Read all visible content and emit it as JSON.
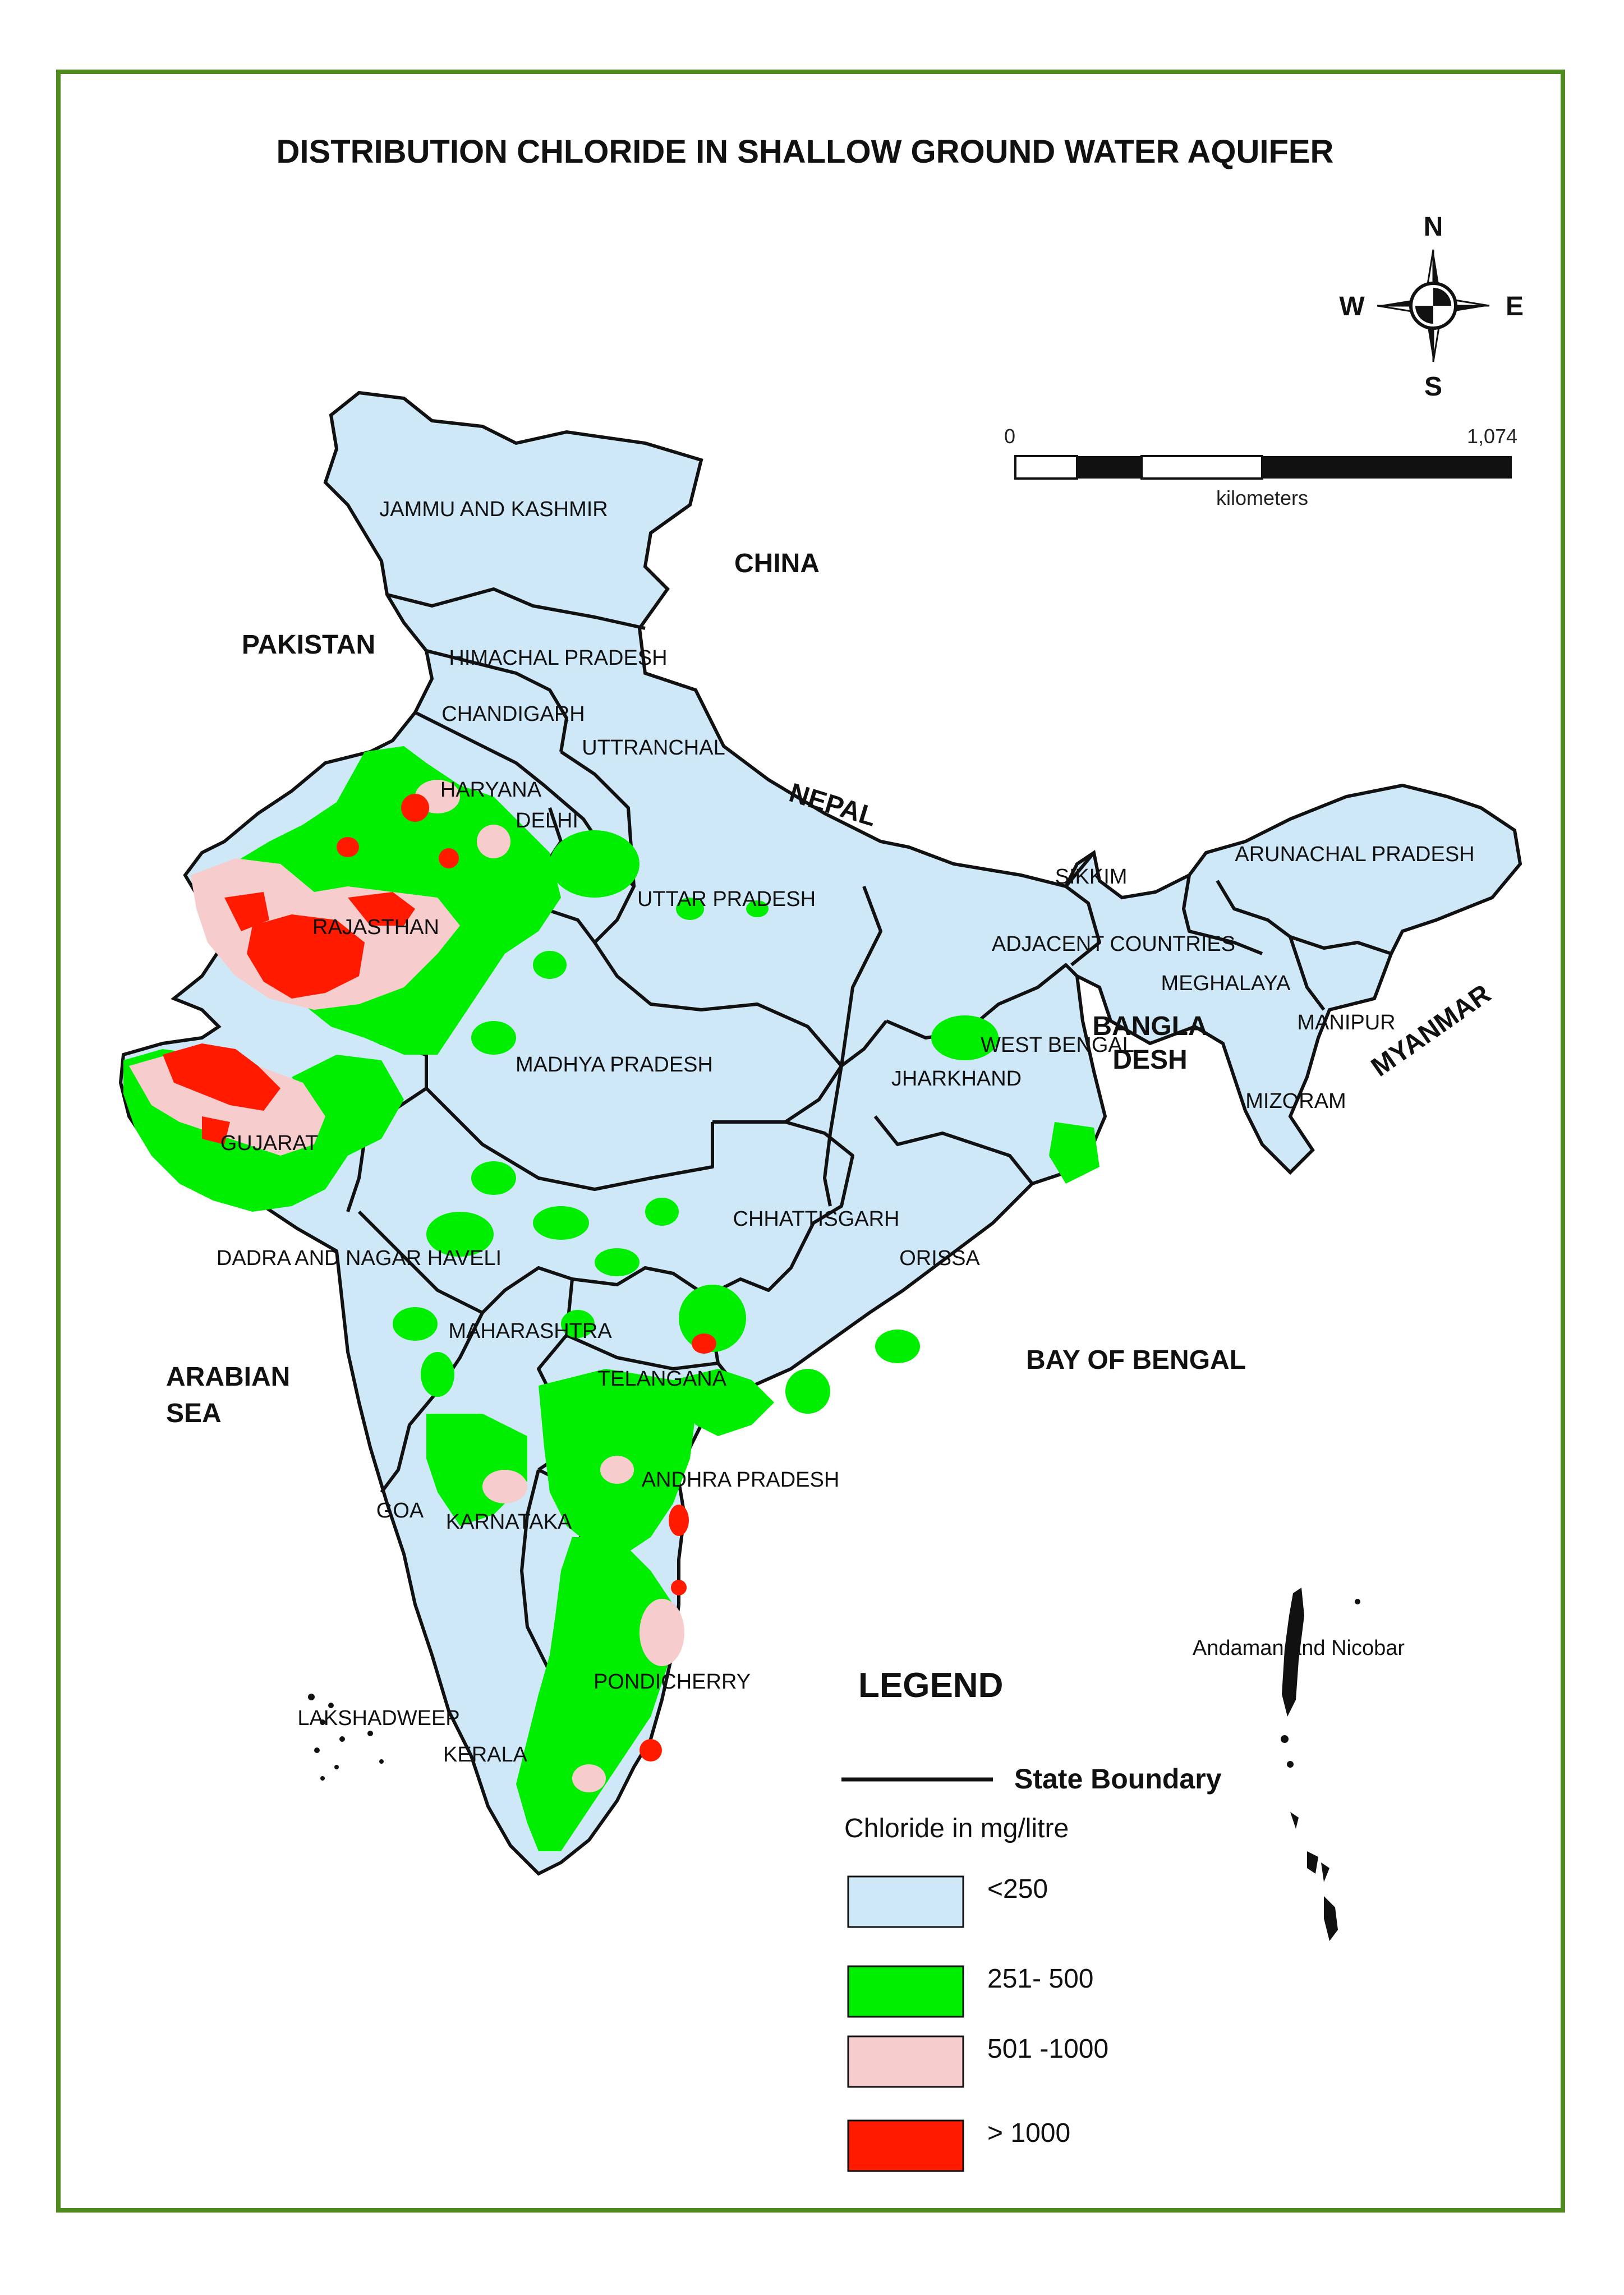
{
  "title": "DISTRIBUTION CHLORIDE IN SHALLOW GROUND WATER AQUIFER",
  "compass": {
    "north": "N",
    "south": "S",
    "east": "E",
    "west": "W",
    "icon": "compass-rose-icon"
  },
  "scale_bar": {
    "start": "0",
    "end": "1,074",
    "unit": "kilometers"
  },
  "countries": {
    "china": "CHINA",
    "pakistan": "PAKISTAN",
    "nepal": "NEPAL",
    "bangladesh_1": "BANGLA",
    "bangladesh_2": "DESH",
    "myanmar": "MYANMAR",
    "arabian_sea_1": "ARABIAN",
    "arabian_sea_2": "SEA",
    "bay_of_bengal": "BAY OF BENGAL"
  },
  "states": {
    "jammu_kashmir": "JAMMU AND KASHMIR",
    "himachal": "HIMACHAL PRADESH",
    "chandigarh": "CHANDIGARH",
    "uttranchal": "UTTRANCHAL",
    "haryana": "HARYANA",
    "delhi": "DELHI",
    "uttar_pradesh": "UTTAR PRADESH",
    "rajasthan": "RAJASTHAN",
    "sikkim": "SIKKIM",
    "arunachal": "ARUNACHAL PRADESH",
    "adjacent": "ADJACENT COUNTRIES",
    "meghalaya": "MEGHALAYA",
    "manipur": "MANIPUR",
    "mizoram": "MIZORAM",
    "west_bengal": "WEST BENGAL",
    "jharkhand": "JHARKHAND",
    "madhya_pradesh": "MADHYA PRADESH",
    "gujarat": "GUJARAT",
    "chhattisgarh": "CHHATTISGARH",
    "orissa": "ORISSA",
    "dadra": "DADRA AND NAGAR HAVELI",
    "maharashtra": "MAHARASHTRA",
    "telangana": "TELANGANA",
    "andhra": "ANDHRA PRADESH",
    "goa": "GOA",
    "karnataka": "KARNATAKA",
    "pondicherry": "PONDICHERRY",
    "lakshadweep": "LAKSHADWEEP",
    "kerala": "KERALA",
    "andaman": "Andaman and Nicobar"
  },
  "legend": {
    "title": "LEGEND",
    "boundary_label": "State Boundary",
    "subtitle": "Chloride in mg/litre",
    "classes": [
      {
        "label": "<250",
        "color": "#cfe8f8"
      },
      {
        "label": "251- 500",
        "color": "#00ee00"
      },
      {
        "label": "501 -1000",
        "color": "#f7cccc"
      },
      {
        "label": "> 1000",
        "color": "#ff1a00"
      }
    ]
  },
  "colors": {
    "frame": "#4f8a1e",
    "boundary": "#111111",
    "land": "#cfe8f8"
  }
}
